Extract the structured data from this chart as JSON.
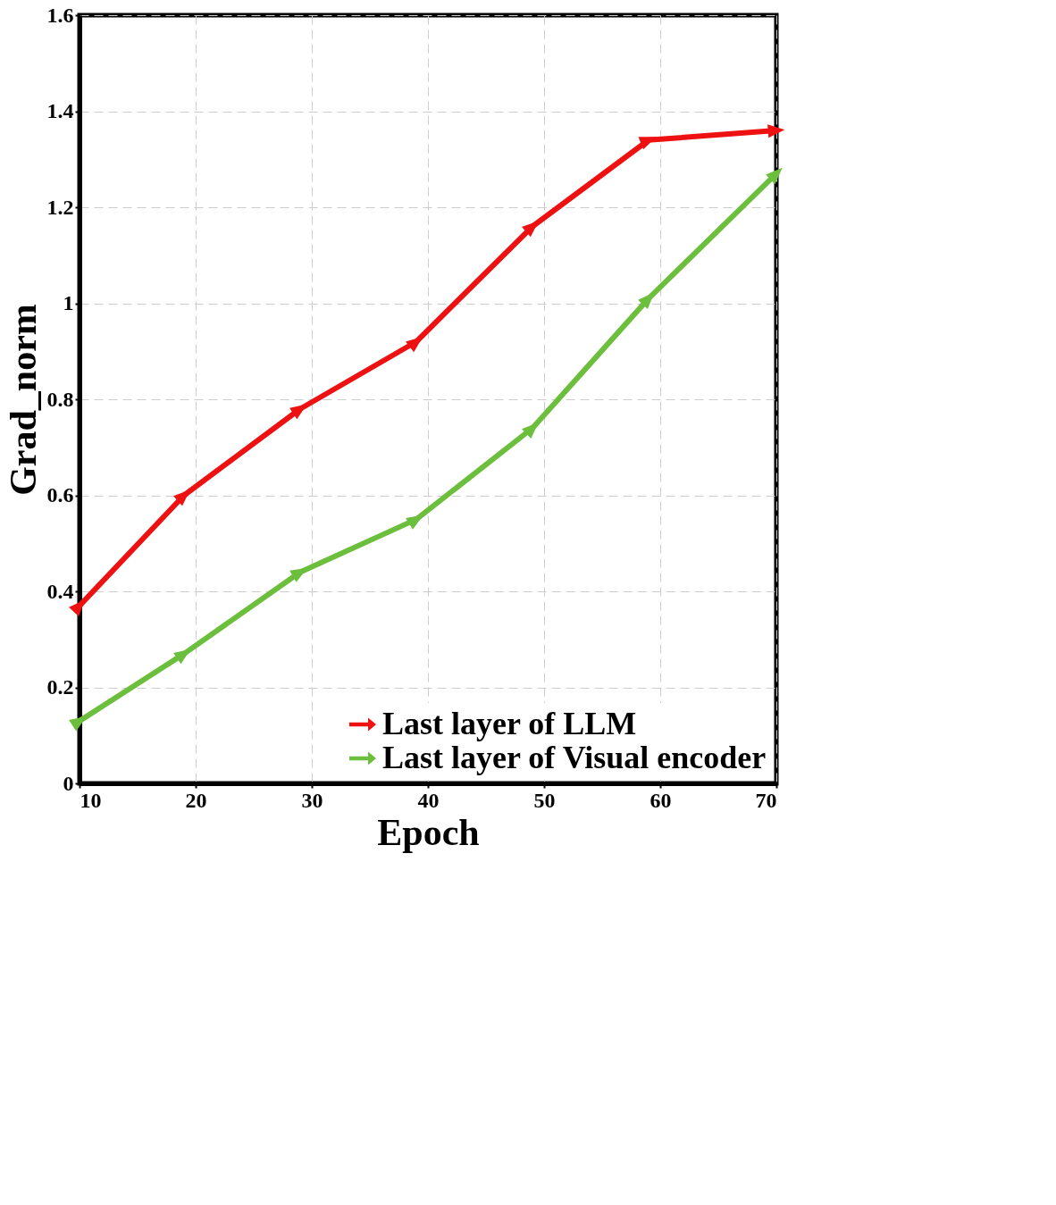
{
  "chart_data": {
    "type": "line",
    "xlabel": "Epoch",
    "ylabel": "Grad_norm",
    "xlim": [
      10,
      70
    ],
    "xticks": [
      10,
      20,
      30,
      40,
      50,
      60,
      70
    ],
    "ylim": [
      0,
      1.6
    ],
    "yticks": [
      0,
      0.2,
      0.4,
      0.6,
      0.8,
      1,
      1.2,
      1.4,
      1.6
    ],
    "grid": true,
    "legend": "bottom right",
    "marker": "triangle",
    "line_style": "solid",
    "series": [
      {
        "name": "Last layer of LLM",
        "color": "#ee1111",
        "x": [
          10,
          19,
          29,
          39,
          49,
          59,
          70
        ],
        "values": [
          0.37,
          0.6,
          0.78,
          0.92,
          1.16,
          1.34,
          1.36
        ]
      },
      {
        "name": "Last layer of Visual encoder",
        "color": "#6cbf3c",
        "x": [
          10,
          19,
          29,
          39,
          49,
          59,
          70
        ],
        "values": [
          0.13,
          0.27,
          0.44,
          0.55,
          0.74,
          1.01,
          1.27
        ]
      }
    ]
  }
}
